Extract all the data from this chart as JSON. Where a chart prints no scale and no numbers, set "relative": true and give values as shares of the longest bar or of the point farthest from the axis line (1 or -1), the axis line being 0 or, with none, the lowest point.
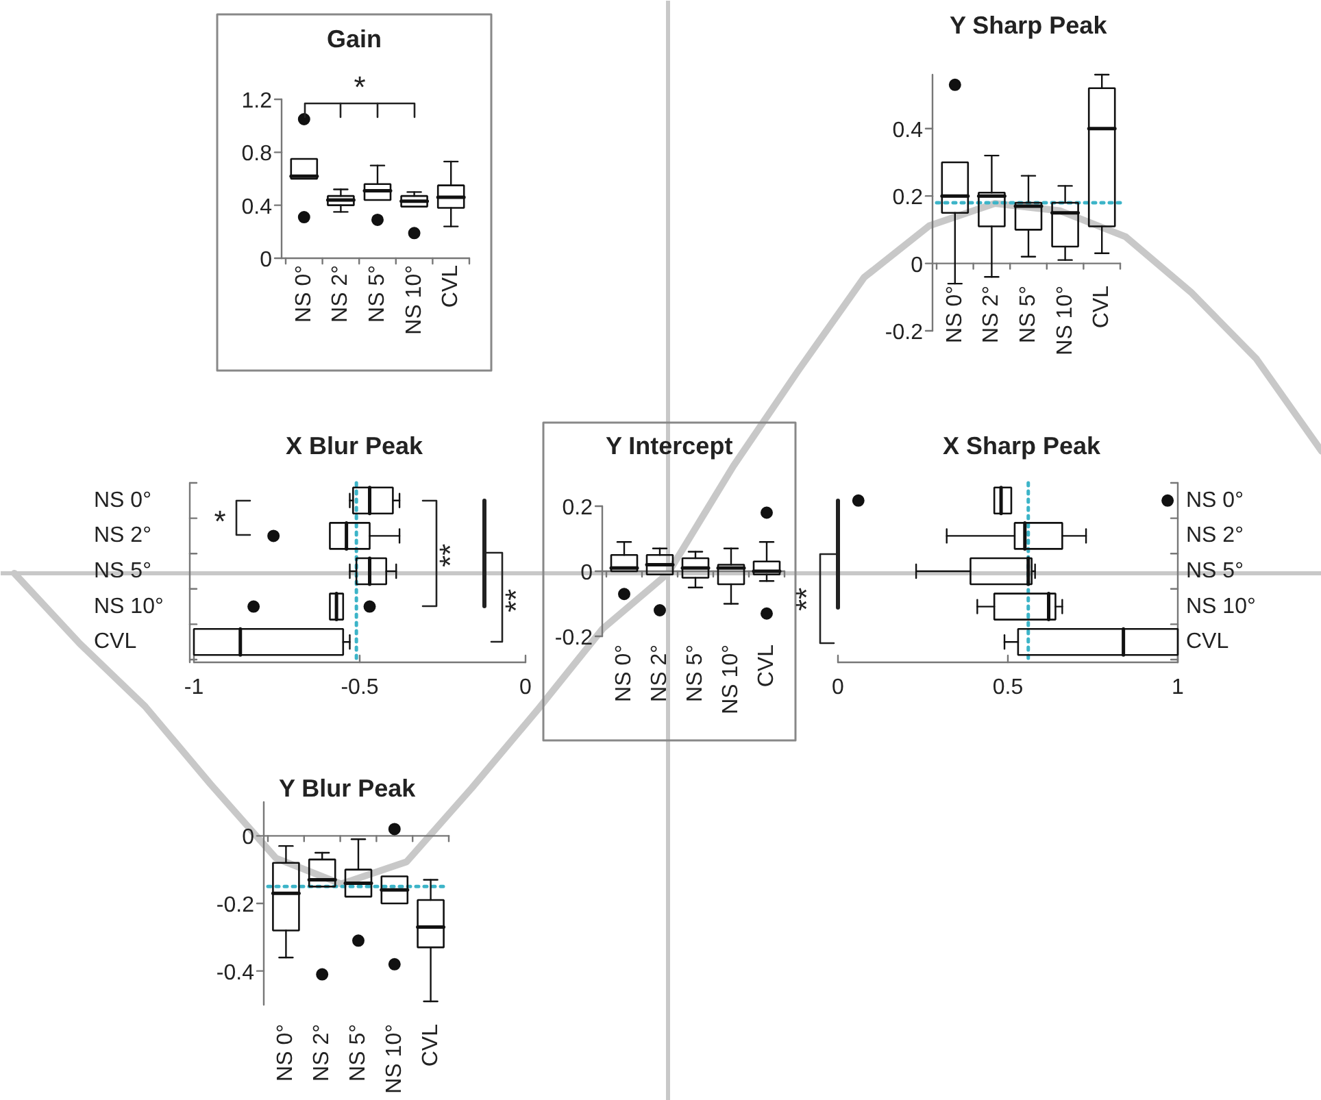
{
  "chart_data": [
    {
      "type": "line",
      "relative": true,
      "categories": [
        null,
        null,
        null,
        null,
        null,
        null,
        null,
        null,
        null,
        null,
        null,
        null,
        null,
        null,
        null,
        null,
        null,
        null,
        null,
        null,
        null
      ],
      "series": [
        {
          "color": "#c8c8c8",
          "values": [
            0,
            -0.19,
            -0.36,
            -0.57,
            -0.77,
            -0.84,
            -0.78,
            -0.58,
            -0.37,
            -0.15,
            0,
            0.29,
            0.55,
            0.8,
            0.94,
            1.0,
            0.98,
            0.91,
            0.76,
            0.58,
            0.33
          ]
        }
      ]
    },
    {
      "type": "box",
      "title": "Gain",
      "categories": [
        "NS 0°",
        "NS 2°",
        "NS 5°",
        "NS 10°",
        "CVL"
      ],
      "ylim": [
        0,
        1.2
      ],
      "yticks": [
        0,
        0.4,
        0.8,
        1.2
      ],
      "boxes": [
        {
          "low": 0.6,
          "q1": 0.6,
          "median": 0.62,
          "q3": 0.75,
          "high": 0.75,
          "outliers": [
            1.05,
            0.31
          ]
        },
        {
          "low": 0.35,
          "q1": 0.4,
          "median": 0.44,
          "q3": 0.47,
          "high": 0.52
        },
        {
          "low": 0.44,
          "q1": 0.44,
          "median": 0.51,
          "q3": 0.56,
          "high": 0.7,
          "outliers": [
            0.29
          ]
        },
        {
          "low": 0.39,
          "q1": 0.39,
          "median": 0.43,
          "q3": 0.47,
          "high": 0.5,
          "outliers": [
            0.19
          ]
        },
        {
          "low": 0.24,
          "q1": 0.38,
          "median": 0.46,
          "q3": 0.55,
          "high": 0.73
        }
      ],
      "annotations": [
        "*"
      ]
    },
    {
      "type": "box",
      "title": "Y Sharp Peak",
      "categories": [
        "NS 0°",
        "NS 2°",
        "NS 5°",
        "NS 10°",
        "CVL"
      ],
      "ylim": [
        -0.2,
        0.56
      ],
      "yticks": [
        -0.2,
        0,
        0.2,
        0.4
      ],
      "boxes": [
        {
          "low": -0.06,
          "q1": 0.15,
          "median": 0.2,
          "q3": 0.3,
          "high": 0.3,
          "outliers": [
            0.53
          ]
        },
        {
          "low": -0.04,
          "q1": 0.11,
          "median": 0.2,
          "q3": 0.21,
          "high": 0.32
        },
        {
          "low": 0.02,
          "q1": 0.1,
          "median": 0.17,
          "q3": 0.18,
          "high": 0.26
        },
        {
          "low": 0.01,
          "q1": 0.05,
          "median": 0.15,
          "q3": 0.18,
          "high": 0.23
        },
        {
          "low": 0.03,
          "q1": 0.11,
          "median": 0.4,
          "q3": 0.52,
          "high": 0.56
        }
      ],
      "ref_lines": [
        {
          "axis": "y",
          "value": 0.18,
          "color": "#3cb4c8",
          "line_style": "dotted"
        }
      ]
    },
    {
      "type": "box",
      "title": "X Blur Peak",
      "orientation": "horizontal",
      "categories": [
        "NS 0°",
        "NS 2°",
        "NS 5°",
        "NS 10°",
        "CVL"
      ],
      "xlim": [
        -1,
        0
      ],
      "xticks": [
        -1,
        -0.5,
        0
      ],
      "boxes": [
        {
          "low": -0.53,
          "q1": -0.52,
          "median": -0.47,
          "q3": -0.4,
          "high": -0.38
        },
        {
          "low": -0.59,
          "q1": -0.59,
          "median": -0.54,
          "q3": -0.47,
          "high": -0.38,
          "outliers": [
            -0.76
          ]
        },
        {
          "low": -0.53,
          "q1": -0.51,
          "median": -0.47,
          "q3": -0.42,
          "high": -0.39
        },
        {
          "low": -0.59,
          "q1": -0.59,
          "median": -0.57,
          "q3": -0.55,
          "high": -0.55,
          "outliers": [
            -0.82,
            -0.47
          ]
        },
        {
          "low": -1,
          "q1": -1,
          "median": -0.86,
          "q3": -0.55,
          "high": -0.53
        }
      ],
      "ref_lines": [
        {
          "axis": "x",
          "value": -0.51,
          "color": "#3cb4c8",
          "line_style": "dotted"
        }
      ],
      "annotations": [
        "*",
        "**",
        "**"
      ]
    },
    {
      "type": "box",
      "title": "Y Intercept",
      "categories": [
        "NS 0°",
        "NS 2°",
        "NS 5°",
        "NS 10°",
        "CVL"
      ],
      "ylim": [
        -0.2,
        0.2
      ],
      "yticks": [
        -0.2,
        0,
        0.2
      ],
      "boxes": [
        {
          "low": 0,
          "q1": 0,
          "median": 0.01,
          "q3": 0.05,
          "high": 0.09,
          "outliers": [
            -0.07
          ]
        },
        {
          "low": -0.01,
          "q1": -0.01,
          "median": 0.02,
          "q3": 0.05,
          "high": 0.07,
          "outliers": [
            -0.12
          ]
        },
        {
          "low": -0.05,
          "q1": -0.02,
          "median": 0.01,
          "q3": 0.04,
          "high": 0.06
        },
        {
          "low": -0.1,
          "q1": -0.04,
          "median": 0.01,
          "q3": 0.02,
          "high": 0.07
        },
        {
          "low": -0.03,
          "q1": -0.01,
          "median": 0,
          "q3": 0.03,
          "high": 0.09,
          "outliers": [
            0.18,
            -0.13
          ]
        }
      ]
    },
    {
      "type": "box",
      "title": "X Sharp Peak",
      "orientation": "horizontal",
      "categories": [
        "NS 0°",
        "NS 2°",
        "NS 5°",
        "NS 10°",
        "CVL"
      ],
      "xlim": [
        0,
        1
      ],
      "xticks": [
        0,
        0.5,
        1
      ],
      "boxes": [
        {
          "low": 0.46,
          "q1": 0.46,
          "median": 0.48,
          "q3": 0.51,
          "high": 0.51,
          "outliers": [
            0.06,
            0.97
          ]
        },
        {
          "low": 0.32,
          "q1": 0.52,
          "median": 0.55,
          "q3": 0.66,
          "high": 0.73
        },
        {
          "low": 0.23,
          "q1": 0.39,
          "median": 0.56,
          "q3": 0.57,
          "high": 0.58
        },
        {
          "low": 0.41,
          "q1": 0.46,
          "median": 0.62,
          "q3": 0.64,
          "high": 0.66
        },
        {
          "low": 0.49,
          "q1": 0.53,
          "median": 0.84,
          "q3": 1,
          "high": 1
        }
      ],
      "ref_lines": [
        {
          "axis": "x",
          "value": 0.56,
          "color": "#3cb4c8",
          "line_style": "dotted"
        }
      ],
      "annotations": [
        "**"
      ]
    },
    {
      "type": "box",
      "title": "Y Blur Peak",
      "categories": [
        "NS 0°",
        "NS 2°",
        "NS 5°",
        "NS 10°",
        "CVL"
      ],
      "ylim": [
        -0.5,
        0.1
      ],
      "yticks": [
        -0.4,
        -0.2,
        0
      ],
      "boxes": [
        {
          "low": -0.36,
          "q1": -0.28,
          "median": -0.17,
          "q3": -0.08,
          "high": -0.03
        },
        {
          "low": -0.15,
          "q1": -0.15,
          "median": -0.13,
          "q3": -0.07,
          "high": -0.05,
          "outliers": [
            -0.41
          ]
        },
        {
          "low": -0.18,
          "q1": -0.18,
          "median": -0.14,
          "q3": -0.1,
          "high": -0.01,
          "outliers": [
            -0.31
          ]
        },
        {
          "low": -0.2,
          "q1": -0.2,
          "median": -0.16,
          "q3": -0.12,
          "high": -0.12,
          "outliers": [
            0.02,
            -0.38
          ]
        },
        {
          "low": -0.49,
          "q1": -0.33,
          "median": -0.27,
          "q3": -0.19,
          "high": -0.13
        }
      ],
      "ref_lines": [
        {
          "axis": "y",
          "value": -0.15,
          "color": "#3cb4c8",
          "line_style": "dotted"
        }
      ]
    }
  ]
}
